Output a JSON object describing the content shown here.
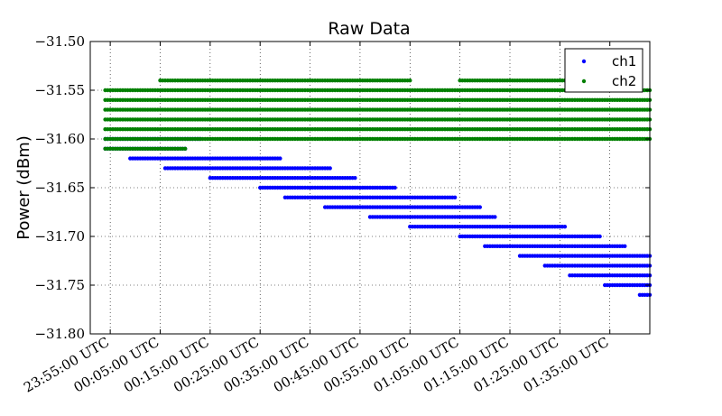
{
  "chart_data": {
    "type": "scatter",
    "title": "Raw Data",
    "xlabel": "",
    "ylabel": "Power (dBm)",
    "ylim": [
      -31.8,
      -31.5
    ],
    "y_ticks": [
      "−31.50",
      "−31.55",
      "−31.60",
      "−31.65",
      "−31.70",
      "−31.75",
      "−31.80"
    ],
    "xlim_minutes": [
      -9,
      103
    ],
    "x_ticks": [
      "23:55:00 UTC",
      "00:05:00 UTC",
      "00:15:00 UTC",
      "00:25:00 UTC",
      "00:35:00 UTC",
      "00:45:00 UTC",
      "00:55:00 UTC",
      "01:05:00 UTC",
      "01:15:00 UTC",
      "01:25:00 UTC",
      "01:35:00 UTC"
    ],
    "grid": true,
    "legend": "top-right",
    "series": [
      {
        "name": "ch1",
        "color": "#0000ff",
        "segments": [
          {
            "x_start": "23:54:00 UTC",
            "x_end": "00:13:00 UTC",
            "y": -31.6
          },
          {
            "x_start": "23:54:00 UTC",
            "x_end": "00:10:00 UTC",
            "y": -31.61
          },
          {
            "x_start": "23:59:00 UTC",
            "x_end": "00:29:00 UTC",
            "y": -31.62
          },
          {
            "x_start": "00:06:00 UTC",
            "x_end": "00:39:00 UTC",
            "y": -31.63
          },
          {
            "x_start": "00:15:00 UTC",
            "x_end": "00:44:00 UTC",
            "y": -31.64
          },
          {
            "x_start": "00:25:00 UTC",
            "x_end": "00:52:00 UTC",
            "y": -31.65
          },
          {
            "x_start": "00:30:00 UTC",
            "x_end": "01:04:00 UTC",
            "y": -31.66
          },
          {
            "x_start": "00:38:00 UTC",
            "x_end": "01:09:00 UTC",
            "y": -31.67
          },
          {
            "x_start": "00:47:00 UTC",
            "x_end": "01:12:00 UTC",
            "y": -31.68
          },
          {
            "x_start": "00:55:00 UTC",
            "x_end": "01:26:00 UTC",
            "y": -31.69
          },
          {
            "x_start": "01:05:00 UTC",
            "x_end": "01:33:00 UTC",
            "y": -31.7
          },
          {
            "x_start": "01:10:00 UTC",
            "x_end": "01:38:00 UTC",
            "y": -31.71
          },
          {
            "x_start": "01:17:00 UTC",
            "x_end": "01:43:00 UTC",
            "y": -31.72
          },
          {
            "x_start": "01:22:00 UTC",
            "x_end": "01:43:00 UTC",
            "y": -31.73
          },
          {
            "x_start": "01:27:00 UTC",
            "x_end": "01:43:00 UTC",
            "y": -31.74
          },
          {
            "x_start": "01:34:00 UTC",
            "x_end": "01:43:00 UTC",
            "y": -31.75
          },
          {
            "x_start": "01:41:00 UTC",
            "x_end": "01:43:00 UTC",
            "y": -31.76
          }
        ]
      },
      {
        "name": "ch2",
        "color": "#007f00",
        "segments": [
          {
            "x_start": "23:54:00 UTC",
            "x_end": "01:43:00 UTC",
            "y": -31.55
          },
          {
            "x_start": "23:54:00 UTC",
            "x_end": "01:43:00 UTC",
            "y": -31.56
          },
          {
            "x_start": "23:54:00 UTC",
            "x_end": "01:43:00 UTC",
            "y": -31.57
          },
          {
            "x_start": "23:54:00 UTC",
            "x_end": "01:43:00 UTC",
            "y": -31.58
          },
          {
            "x_start": "23:54:00 UTC",
            "x_end": "01:43:00 UTC",
            "y": -31.59
          },
          {
            "x_start": "23:54:00 UTC",
            "x_end": "01:43:00 UTC",
            "y": -31.6
          },
          {
            "x_start": "23:54:00 UTC",
            "x_end": "00:10:00 UTC",
            "y": -31.61
          },
          {
            "x_start": "00:05:00 UTC",
            "x_end": "00:55:00 UTC",
            "y": -31.54
          },
          {
            "x_start": "01:05:00 UTC",
            "x_end": "01:35:00 UTC",
            "y": -31.54
          }
        ]
      }
    ]
  }
}
